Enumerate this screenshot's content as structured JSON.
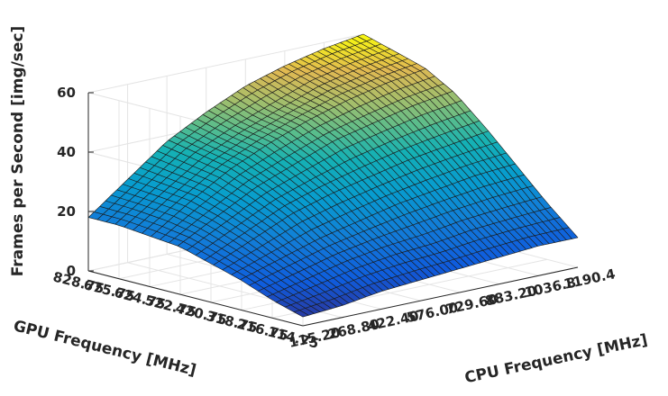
{
  "chart_data": {
    "type": "surface",
    "title": "",
    "zlabel": "Frames per Second [img/sec]",
    "xlabel": "CPU Frequency [MHz]",
    "ylabel": "GPU Frequency [MHz]",
    "zlim": [
      0,
      60
    ],
    "z_ticks": [
      "0",
      "20",
      "40",
      "60"
    ],
    "cpu_tick_labels": [
      "115.20",
      "268.80",
      "422.40",
      "576.00",
      "729.60",
      "883.20",
      "1036.8",
      "1190.4"
    ],
    "gpu_tick_labels": [
      "114.75",
      "216.75",
      "318.75",
      "420.75",
      "522.75",
      "624.75",
      "675.75",
      "828.75"
    ],
    "grid": true,
    "colormap": "parula",
    "cpu_mhz": [
      115.2,
      268.8,
      422.4,
      576.0,
      729.6,
      883.2,
      1036.8,
      1190.4
    ],
    "gpu_mhz": [
      114.75,
      216.75,
      318.75,
      420.75,
      522.75,
      624.75,
      675.75,
      828.75
    ],
    "fps_by_gpu_cpu": [
      [
        3,
        4,
        6,
        7,
        8,
        9,
        10,
        10
      ],
      [
        6,
        9,
        12,
        14,
        15,
        17,
        18,
        19
      ],
      [
        10,
        14,
        18,
        21,
        24,
        26,
        28,
        29
      ],
      [
        13,
        19,
        25,
        29,
        32,
        35,
        37,
        39
      ],
      [
        16,
        23,
        30,
        35,
        40,
        43,
        46,
        48
      ],
      [
        17,
        26,
        34,
        40,
        45,
        49,
        52,
        54
      ],
      [
        18,
        27,
        36,
        42,
        47,
        52,
        55,
        57
      ],
      [
        18,
        28,
        38,
        45,
        51,
        55,
        58,
        60
      ]
    ]
  },
  "colors": {
    "background": "#ffffff",
    "grid": "#e4e4e4",
    "axis": "#262626",
    "edge": "#1a1a1a"
  }
}
